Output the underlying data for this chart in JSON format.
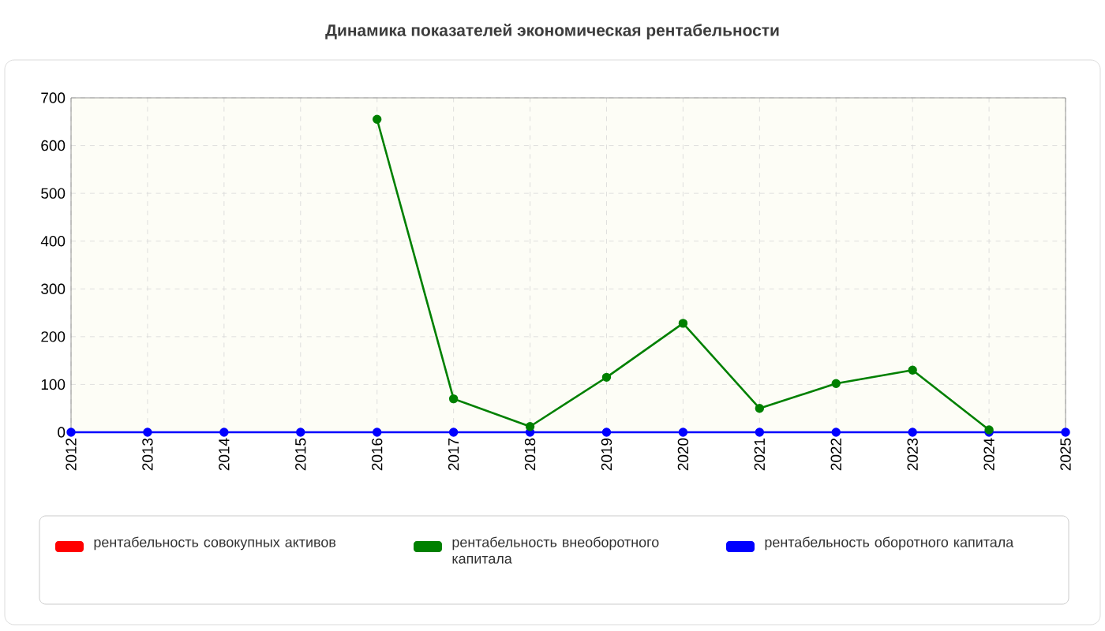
{
  "chart_data": {
    "type": "line",
    "title": "Динамика показателей экономическая рентабельности",
    "categories": [
      "2012",
      "2013",
      "2014",
      "2015",
      "2016",
      "2017",
      "2018",
      "2019",
      "2020",
      "2021",
      "2022",
      "2023",
      "2024",
      "2025"
    ],
    "series": [
      {
        "name": "рентабельность совокупных активов",
        "color": "#ff0000",
        "values": [
          null,
          null,
          null,
          null,
          null,
          null,
          null,
          null,
          null,
          null,
          null,
          null,
          null,
          null
        ]
      },
      {
        "name": "рентабельность внеоборотного капитала",
        "color": "#008000",
        "values": [
          null,
          null,
          null,
          null,
          655,
          70,
          12,
          115,
          228,
          50,
          102,
          130,
          5,
          null
        ]
      },
      {
        "name": "рентабельность оборотного капитала",
        "color": "#0000ff",
        "values": [
          0,
          0,
          0,
          0,
          0,
          0,
          0,
          0,
          0,
          0,
          0,
          0,
          0,
          0
        ]
      }
    ],
    "ylim": [
      0,
      700
    ],
    "yticks": [
      0,
      100,
      200,
      300,
      400,
      500,
      600,
      700
    ],
    "grid": true,
    "legend": "bottom",
    "marker": "circle",
    "line_style": "solid"
  }
}
